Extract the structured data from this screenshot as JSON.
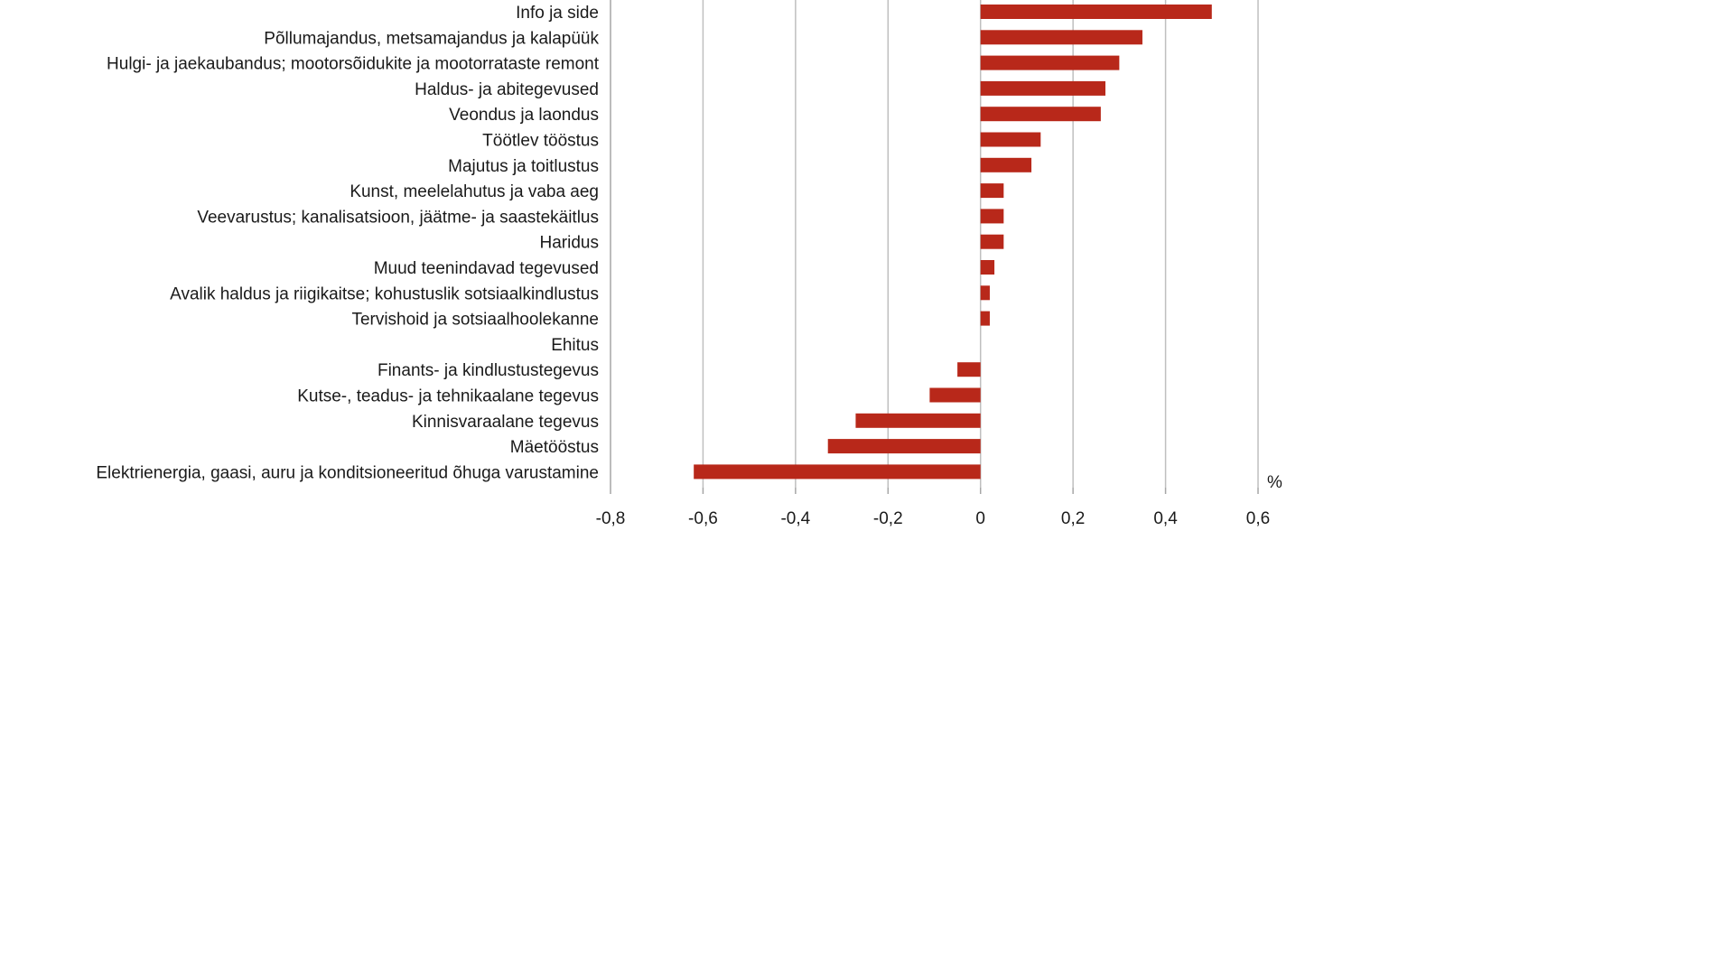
{
  "chart_data": {
    "type": "bar",
    "orientation": "horizontal",
    "title": "",
    "xlabel": "",
    "ylabel": "",
    "unit_label": "%",
    "categories": [
      "Info ja side",
      "Põllumajandus, metsamajandus ja kalapüük",
      "Hulgi- ja jaekaubandus; mootorsõidukite ja mootorrataste remont",
      "Haldus- ja abitegevused",
      "Veondus ja laondus",
      "Töötlev tööstus",
      "Majutus ja toitlustus",
      "Kunst, meelelahutus ja vaba aeg",
      "Veevarustus; kanalisatsioon, jäätme- ja saastekäitlus",
      "Haridus",
      "Muud teenindavad tegevused",
      "Avalik haldus ja riigikaitse; kohustuslik sotsiaalkindlustus",
      "Tervishoid ja sotsiaalhoolekanne",
      "Ehitus",
      "Finants- ja kindlustustegevus",
      "Kutse-, teadus- ja tehnikaalane tegevus",
      "Kinnisvaraalane tegevus",
      "Mäetööstus",
      "Elektrienergia, gaasi, auru ja konditsioneeritud õhuga varustamine"
    ],
    "values": [
      0.5,
      0.35,
      0.3,
      0.27,
      0.26,
      0.13,
      0.11,
      0.05,
      0.05,
      0.05,
      0.03,
      0.02,
      0.02,
      0.0,
      -0.05,
      -0.11,
      -0.27,
      -0.33,
      -0.62
    ],
    "xlim": [
      -0.8,
      0.6
    ],
    "x_ticks": [
      -0.8,
      -0.6,
      -0.4,
      -0.2,
      0,
      0.2,
      0.4,
      0.6
    ],
    "x_tick_labels": [
      "-0,8",
      "-0,6",
      "-0,4",
      "-0,2",
      "0",
      "0,2",
      "0,4",
      "0,6"
    ],
    "grid": "vertical",
    "legend": "none",
    "bar_color": "#b8281a",
    "grid_color": "#bfbfbf",
    "axis_color": "#a6a6a6",
    "text_color": "#1a1a1a"
  }
}
